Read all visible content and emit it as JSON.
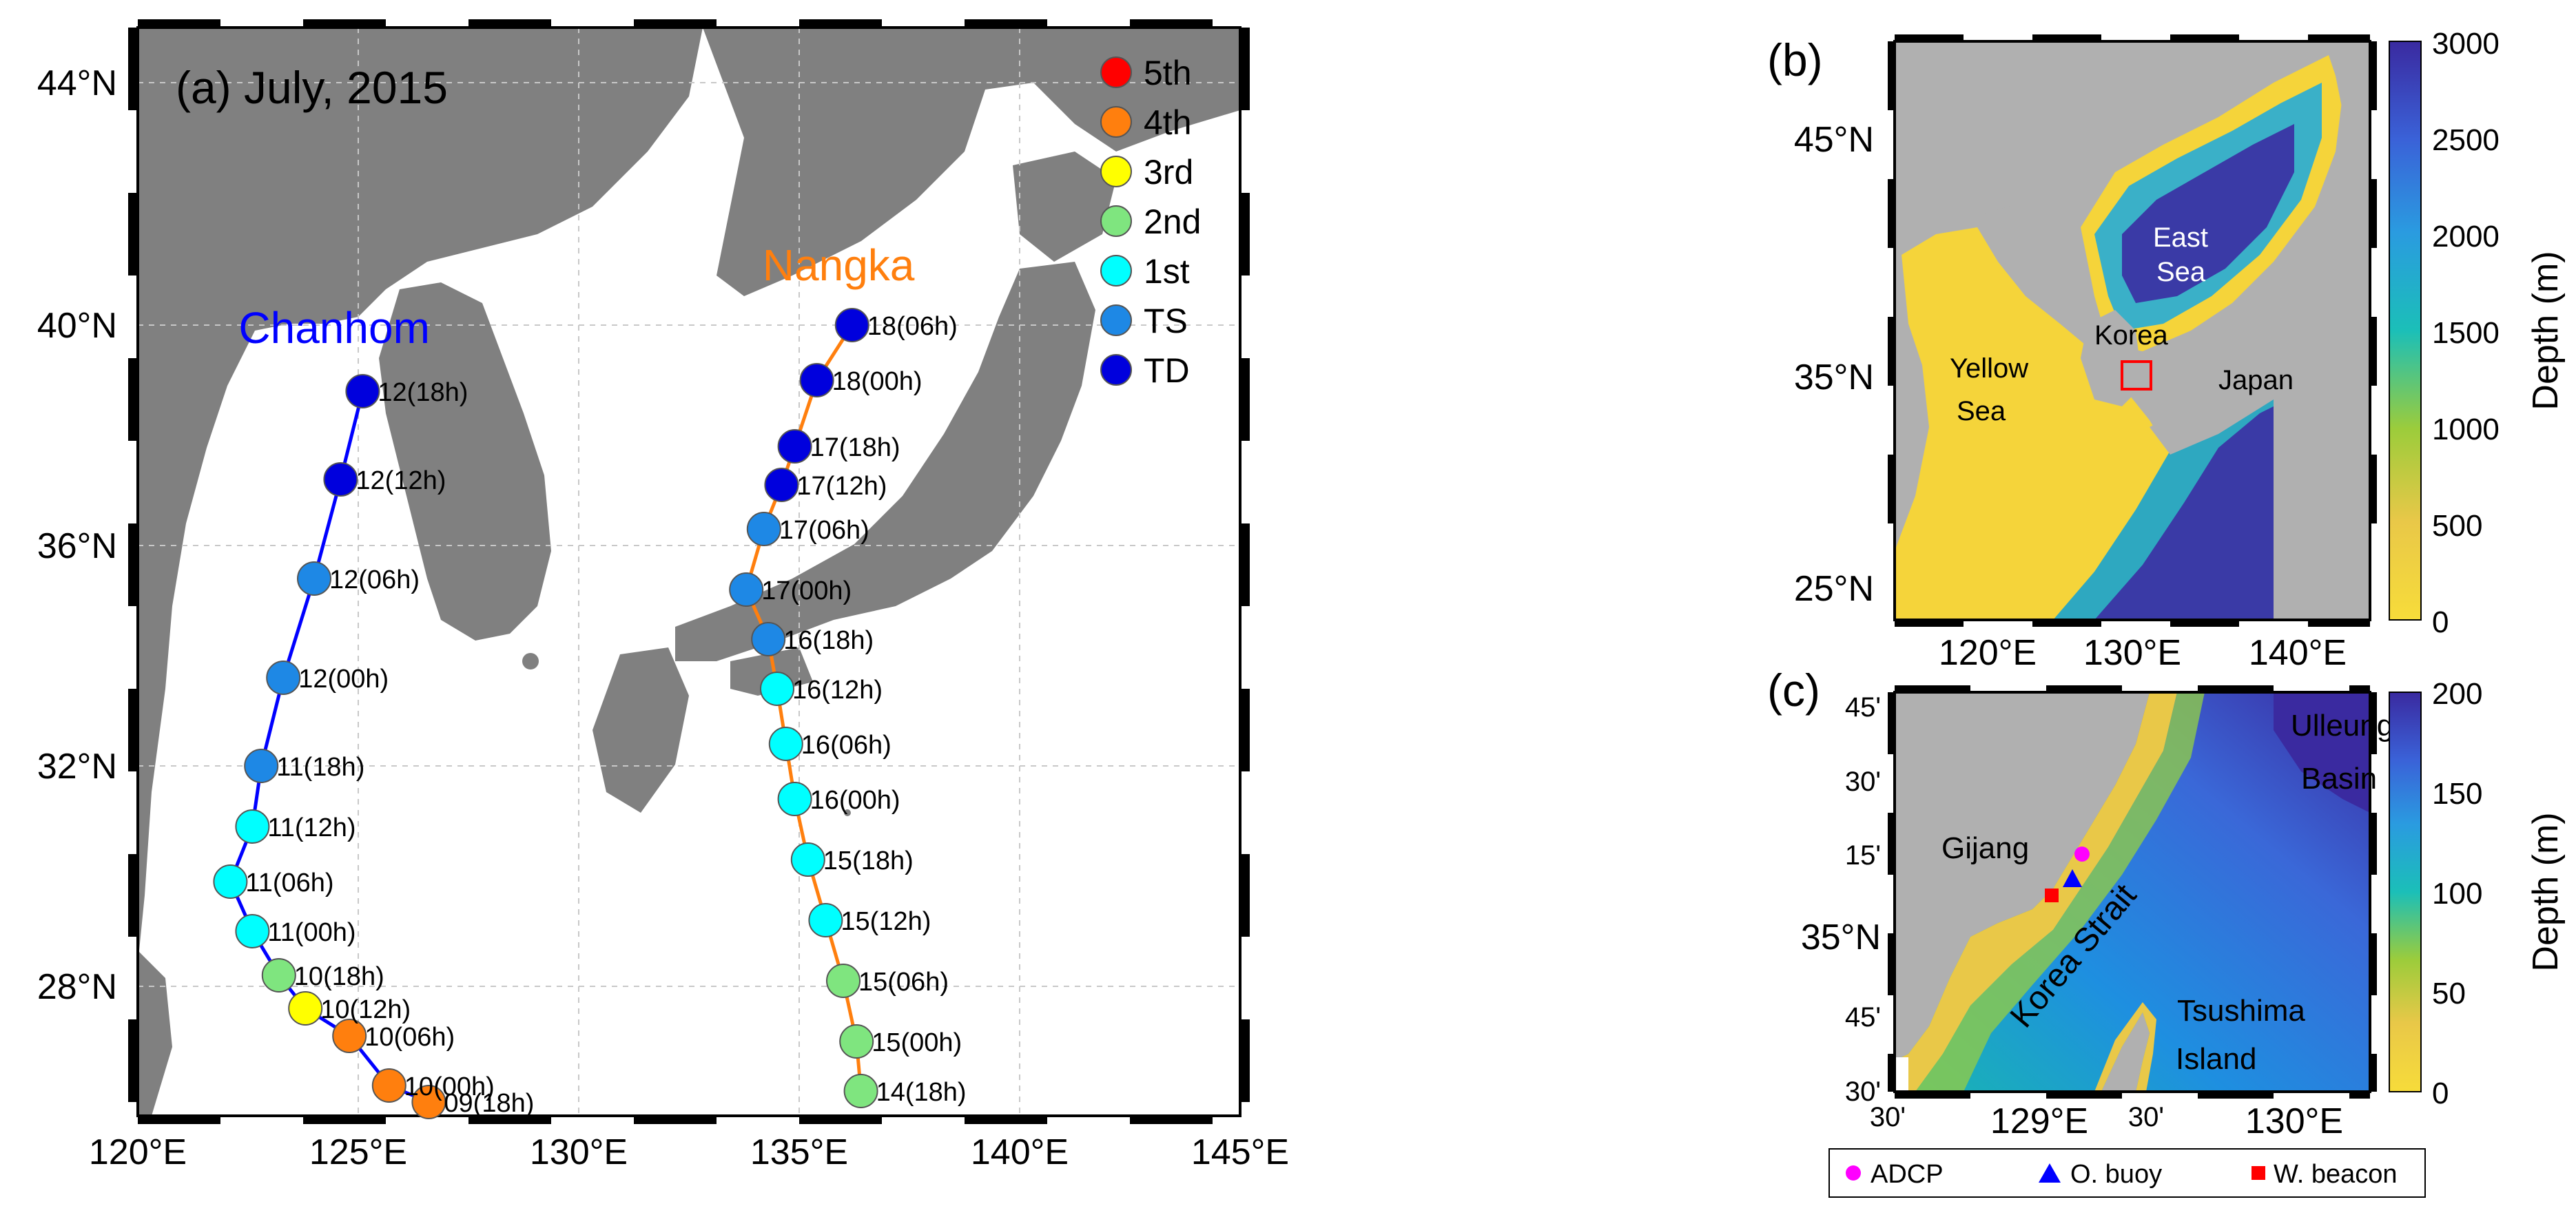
{
  "panel_a": {
    "title": "(a) July, 2015",
    "lon_ticks": [
      "120°E",
      "125°E",
      "130°E",
      "135°E",
      "140°E",
      "145°E"
    ],
    "lat_ticks": [
      "44°N",
      "40°N",
      "36°N",
      "32°N",
      "28°N"
    ],
    "legend": [
      {
        "label": "5th",
        "color": "#ff0000"
      },
      {
        "label": "4th",
        "color": "#ff7f0e"
      },
      {
        "label": "3rd",
        "color": "#ffff00"
      },
      {
        "label": "2nd",
        "color": "#7fe57f"
      },
      {
        "label": "1st",
        "color": "#00ffff"
      },
      {
        "label": "TS",
        "color": "#1e88e5"
      },
      {
        "label": "TD",
        "color": "#0000dd"
      }
    ],
    "typhoons": [
      {
        "name": "Chanhom",
        "line_color": "#0000ff",
        "name_color": "#0000ff",
        "points": [
          {
            "label": "09(18h)",
            "lon": 126.6,
            "lat": 25.5,
            "cat": "4th"
          },
          {
            "label": "10(00h)",
            "lon": 125.7,
            "lat": 25.8,
            "cat": "4th"
          },
          {
            "label": "10(06h)",
            "lon": 124.8,
            "lat": 26.7,
            "cat": "4th"
          },
          {
            "label": "10(12h)",
            "lon": 123.8,
            "lat": 27.2,
            "cat": "3rd"
          },
          {
            "label": "10(18h)",
            "lon": 123.2,
            "lat": 27.8,
            "cat": "2nd"
          },
          {
            "label": "11(00h)",
            "lon": 122.6,
            "lat": 28.6,
            "cat": "1st"
          },
          {
            "label": "11(06h)",
            "lon": 122.1,
            "lat": 29.5,
            "cat": "1st"
          },
          {
            "label": "11(12h)",
            "lon": 122.6,
            "lat": 30.5,
            "cat": "1st"
          },
          {
            "label": "11(18h)",
            "lon": 122.8,
            "lat": 31.6,
            "cat": "TS"
          },
          {
            "label": "12(00h)",
            "lon": 123.3,
            "lat": 33.2,
            "cat": "TS"
          },
          {
            "label": "12(06h)",
            "lon": 124.0,
            "lat": 35.0,
            "cat": "TS"
          },
          {
            "label": "12(12h)",
            "lon": 124.6,
            "lat": 36.8,
            "cat": "TD"
          },
          {
            "label": "12(18h)",
            "lon": 125.1,
            "lat": 38.4,
            "cat": "TD"
          }
        ]
      },
      {
        "name": "Nangka",
        "line_color": "#ff7f0e",
        "name_color": "#ff7f0e",
        "points": [
          {
            "label": "14(18h)",
            "lon": 136.4,
            "lat": 25.7,
            "cat": "2nd"
          },
          {
            "label": "15(00h)",
            "lon": 136.3,
            "lat": 26.6,
            "cat": "2nd"
          },
          {
            "label": "15(06h)",
            "lon": 136.0,
            "lat": 27.7,
            "cat": "2nd"
          },
          {
            "label": "15(12h)",
            "lon": 135.6,
            "lat": 28.8,
            "cat": "1st"
          },
          {
            "label": "15(18h)",
            "lon": 135.2,
            "lat": 29.9,
            "cat": "1st"
          },
          {
            "label": "16(00h)",
            "lon": 134.9,
            "lat": 31.0,
            "cat": "1st"
          },
          {
            "label": "16(06h)",
            "lon": 134.7,
            "lat": 32.0,
            "cat": "1st"
          },
          {
            "label": "16(12h)",
            "lon": 134.5,
            "lat": 33.0,
            "cat": "1st"
          },
          {
            "label": "16(18h)",
            "lon": 134.3,
            "lat": 33.9,
            "cat": "TS"
          },
          {
            "label": "17(00h)",
            "lon": 133.8,
            "lat": 34.8,
            "cat": "TS"
          },
          {
            "label": "17(06h)",
            "lon": 134.2,
            "lat": 35.9,
            "cat": "TS"
          },
          {
            "label": "17(12h)",
            "lon": 134.6,
            "lat": 36.7,
            "cat": "TD"
          },
          {
            "label": "17(18h)",
            "lon": 134.9,
            "lat": 37.4,
            "cat": "TD"
          },
          {
            "label": "18(00h)",
            "lon": 135.4,
            "lat": 38.6,
            "cat": "TD"
          },
          {
            "label": "18(06h)",
            "lon": 136.2,
            "lat": 39.6,
            "cat": "TD"
          }
        ]
      }
    ]
  },
  "panel_b": {
    "tag": "(b)",
    "lat_ticks": [
      "45°N",
      "35°N",
      "25°N"
    ],
    "lon_ticks": [
      "120°E",
      "130°E",
      "140°E"
    ],
    "labels": {
      "east_sea_1": "East",
      "east_sea_2": "Sea",
      "korea": "Korea",
      "yellow_1": "Yellow",
      "yellow_2": "Sea",
      "japan": "Japan"
    },
    "colorbar": {
      "ticks": [
        "3000",
        "2500",
        "2000",
        "1500",
        "1000",
        "500",
        "0"
      ],
      "label": "Depth (m)"
    }
  },
  "panel_c": {
    "tag": "(c)",
    "lat_ticks": [
      "45'",
      "30'",
      "15'",
      "35°N",
      "45'",
      "30'"
    ],
    "lon_ticks": [
      "30'",
      "129°E",
      "30'",
      "130°E"
    ],
    "labels": {
      "ulleung_1": "Ulleung",
      "ulleung_2": "Basin",
      "gijang": "Gijang",
      "korea_strait": "Korea Strait",
      "tsushima_1": "Tsushima",
      "tsushima_2": "Island"
    },
    "colorbar": {
      "ticks": [
        "200",
        "150",
        "100",
        "50",
        "0"
      ],
      "label": "Depth (m)"
    },
    "legend": [
      {
        "label": "ADCP",
        "marker": "circle",
        "color": "#ff00ff"
      },
      {
        "label": "O. buoy",
        "marker": "triangle",
        "color": "#0000ff"
      },
      {
        "label": "W. beacon",
        "marker": "square",
        "color": "#ff0000"
      }
    ]
  }
}
